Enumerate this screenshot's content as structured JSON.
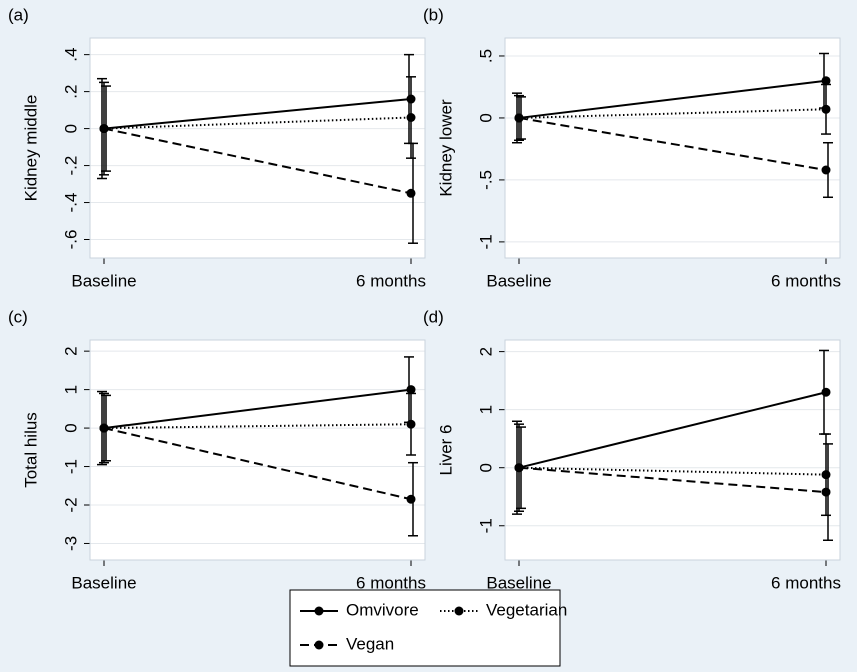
{
  "chart_data": [
    {
      "type": "line",
      "title": "(a)",
      "ylabel": "Kidney middle",
      "categories": [
        "Baseline",
        "6 months"
      ],
      "ylim": [
        -0.7,
        0.49
      ],
      "yticks": [
        {
          "value": 0.4,
          "label": ".4"
        },
        {
          "value": 0.2,
          "label": ".2"
        },
        0,
        {
          "value": -0.2,
          "label": "-.2"
        },
        {
          "value": -0.4,
          "label": "-.4"
        },
        {
          "value": -0.6,
          "label": "-.6"
        }
      ],
      "grid": true,
      "series": [
        {
          "name": "Omvivore",
          "color": "#000000",
          "dash": "solid",
          "values": [
            0,
            0.16
          ],
          "errors": [
            0.27,
            0.24
          ]
        },
        {
          "name": "Vegetarian",
          "color": "#000000",
          "dash": "dotted",
          "values": [
            0,
            0.06
          ],
          "errors": [
            0.25,
            0.22
          ]
        },
        {
          "name": "Vegan",
          "color": "#000000",
          "dash": "dashed",
          "values": [
            0,
            -0.35
          ],
          "errors": [
            0.23,
            0.27
          ]
        }
      ]
    },
    {
      "type": "line",
      "title": "(b)",
      "ylabel": "Kidney lower",
      "categories": [
        "Baseline",
        "6 months"
      ],
      "ylim": [
        -1.13,
        0.645
      ],
      "yticks": [
        {
          "value": 0.5,
          "label": ".5"
        },
        0,
        {
          "value": -0.5,
          "label": "-.5"
        },
        -1
      ],
      "grid": true,
      "series": [
        {
          "color": "#000000",
          "dash": "solid",
          "values": [
            0,
            0.3
          ],
          "errors": [
            0.2,
            0.22
          ]
        },
        {
          "color": "#000000",
          "dash": "dotted",
          "values": [
            0,
            0.07
          ],
          "errors": [
            0.18,
            0.2
          ]
        },
        {
          "color": "#000000",
          "dash": "dashed",
          "values": [
            0,
            -0.42
          ],
          "errors": [
            0.17,
            0.22
          ]
        }
      ]
    },
    {
      "type": "line",
      "title": "(c)",
      "ylabel": "Total hilus",
      "categories": [
        "Baseline",
        "6 months"
      ],
      "ylim": [
        -3.43,
        2.29
      ],
      "yticks": [
        2,
        1,
        0,
        -1,
        -2,
        -3
      ],
      "grid": true,
      "series": [
        {
          "color": "#000000",
          "dash": "solid",
          "values": [
            0,
            1.0
          ],
          "errors": [
            0.95,
            0.85
          ]
        },
        {
          "color": "#000000",
          "dash": "dotted",
          "values": [
            0,
            0.1
          ],
          "errors": [
            0.9,
            0.8
          ]
        },
        {
          "color": "#000000",
          "dash": "dashed",
          "values": [
            0,
            -1.85
          ],
          "errors": [
            0.85,
            0.95
          ]
        }
      ]
    },
    {
      "type": "line",
      "title": "(d)",
      "ylabel": "Liver 6",
      "categories": [
        "Baseline",
        "6 months"
      ],
      "ylim": [
        -1.59,
        2.2
      ],
      "yticks": [
        2,
        1,
        0,
        -1
      ],
      "grid": true,
      "series": [
        {
          "color": "#000000",
          "dash": "solid",
          "values": [
            0,
            1.3
          ],
          "errors": [
            0.8,
            0.72
          ]
        },
        {
          "color": "#000000",
          "dash": "dotted",
          "values": [
            0,
            -0.12
          ],
          "errors": [
            0.75,
            0.7
          ]
        },
        {
          "color": "#000000",
          "dash": "dashed",
          "values": [
            0,
            -0.42
          ],
          "errors": [
            0.7,
            0.83
          ]
        }
      ]
    }
  ]
}
